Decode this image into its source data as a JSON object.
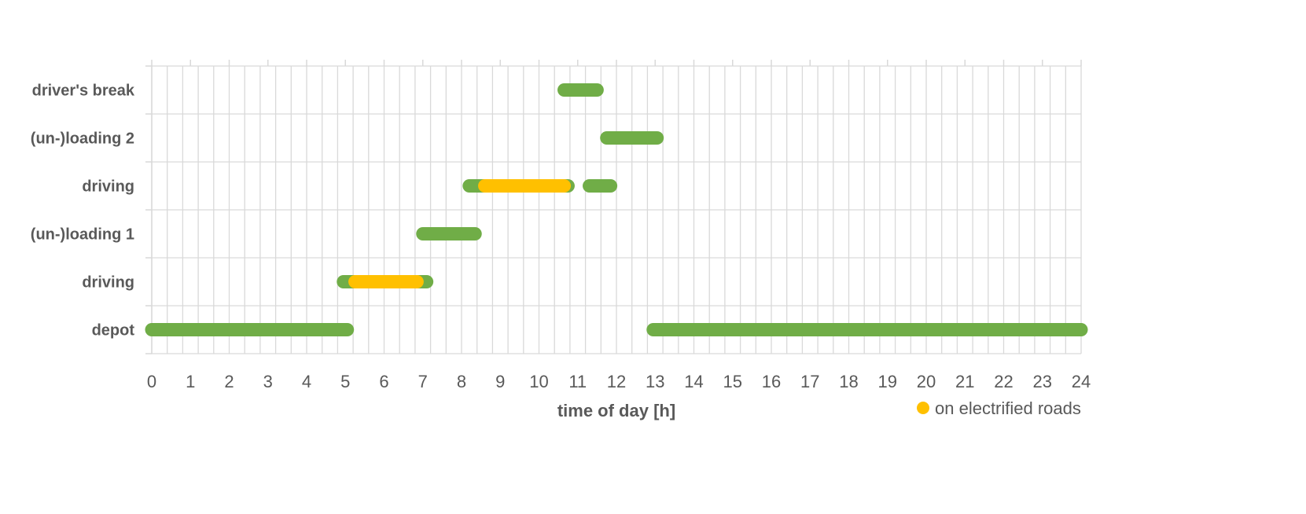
{
  "chart_data": {
    "type": "gantt",
    "xlabel": "time of day [h]",
    "xlim": [
      0,
      24
    ],
    "xticks": [
      "0",
      "1",
      "2",
      "3",
      "4",
      "5",
      "6",
      "7",
      "8",
      "9",
      "10",
      "11",
      "12",
      "13",
      "14",
      "15",
      "16",
      "17",
      "18",
      "19",
      "20",
      "21",
      "22",
      "23",
      "24"
    ],
    "categories": [
      "depot",
      "driving",
      "(un-)loading 1",
      "driving",
      "(un-)loading 2",
      "driver's break"
    ],
    "series": [
      {
        "name": "",
        "color": "#70ad47",
        "segments": [
          {
            "category_index": 0,
            "start": 0,
            "end": 5.05
          },
          {
            "category_index": 0,
            "start": 12.95,
            "end": 24
          },
          {
            "category_index": 1,
            "start": 4.95,
            "end": 7.1
          },
          {
            "category_index": 2,
            "start": 7.0,
            "end": 8.35
          },
          {
            "category_index": 3,
            "start": 8.2,
            "end": 10.75
          },
          {
            "category_index": 3,
            "start": 11.3,
            "end": 11.85
          },
          {
            "category_index": 4,
            "start": 11.75,
            "end": 13.05
          },
          {
            "category_index": 5,
            "start": 10.65,
            "end": 11.5
          }
        ]
      },
      {
        "name": "on electrified roads",
        "color": "#ffc000",
        "segments": [
          {
            "category_index": 1,
            "start": 5.25,
            "end": 6.85
          },
          {
            "category_index": 3,
            "start": 8.6,
            "end": 10.65
          }
        ]
      }
    ],
    "grid": true,
    "legend": {
      "position": "bottom-right",
      "entries": [
        "on electrified roads"
      ]
    }
  }
}
